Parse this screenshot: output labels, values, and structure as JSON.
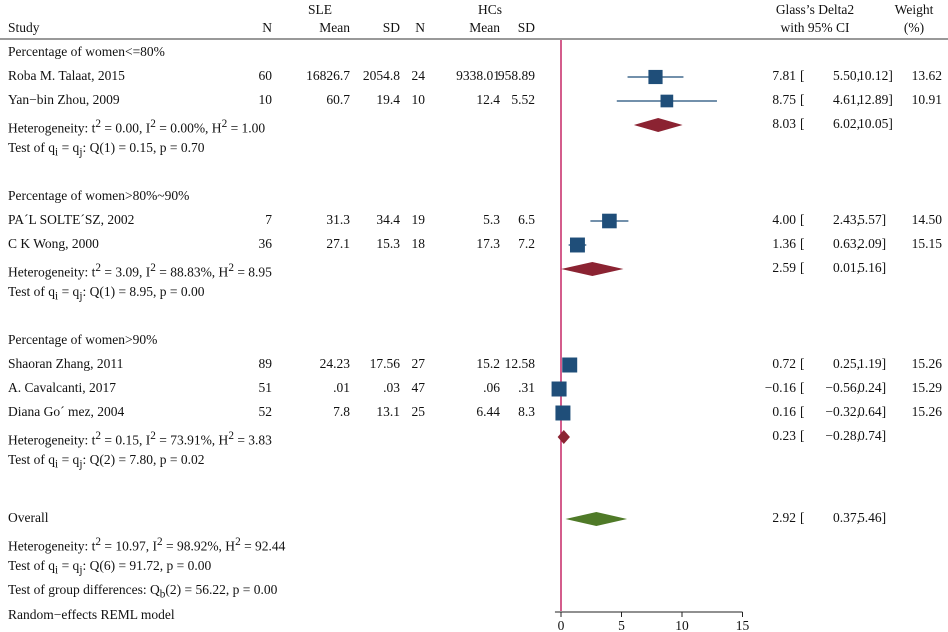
{
  "header": {
    "study": "Study",
    "sle": "SLE",
    "hcs": "HCs",
    "n1": "N",
    "mean1": "Mean",
    "sd1": "SD",
    "n2": "N",
    "mean2": "Mean",
    "sd2": "SD",
    "effect1": "Glass’s Delta2",
    "effect2": "with 95% CI",
    "weight1": "Weight",
    "weight2": "(%)"
  },
  "groups": [
    {
      "title": "Percentage of women<=80%",
      "studies": [
        {
          "name": "Roba M. Talaat, 2015",
          "n1": "60",
          "mean1": "16826.7",
          "sd1": "2054.8",
          "n2": "24",
          "mean2": "9338.01",
          "sd2": "958.89",
          "est": "7.81",
          "lo": "5.50,",
          "hi": "10.12]",
          "w": "13.62"
        },
        {
          "name": "Yan−bin Zhou, 2009",
          "n1": "10",
          "mean1": "60.7",
          "sd1": "19.4",
          "n2": "10",
          "mean2": "12.4",
          "sd2": "5.52",
          "est": "8.75",
          "lo": "4.61,",
          "hi": "12.89]",
          "w": "10.91"
        }
      ],
      "het": {
        "prefix": "Heterogeneity: t",
        "rest": " = 0.00, I",
        "rest2": " = 0.00%, H",
        "rest3": " = 1.00",
        "sup": "2"
      },
      "hetEst": {
        "est": "8.03",
        "lo": "6.02,",
        "hi": "10.05]"
      },
      "test": {
        "a": "Test of q",
        "b": " = q",
        "c": ": Q(1) = 0.15, p = 0.70",
        "si": "i",
        "sj": "j"
      }
    },
    {
      "title": "Percentage of women>80%~90%",
      "studies": [
        {
          "name": "PA´L SOLTE´SZ, 2002",
          "n1": "7",
          "mean1": "31.3",
          "sd1": "34.4",
          "n2": "19",
          "mean2": "5.3",
          "sd2": "6.5",
          "est": "4.00",
          "lo": "2.43,",
          "hi": "5.57]",
          "w": "14.50"
        },
        {
          "name": "C K Wong, 2000",
          "n1": "36",
          "mean1": "27.1",
          "sd1": "15.3",
          "n2": "18",
          "mean2": "17.3",
          "sd2": "7.2",
          "est": "1.36",
          "lo": "0.63,",
          "hi": "2.09]",
          "w": "15.15"
        }
      ],
      "het": {
        "prefix": "Heterogeneity: t",
        "rest": " = 3.09, I",
        "rest2": " = 88.83%, H",
        "rest3": " = 8.95",
        "sup": "2"
      },
      "hetEst": {
        "est": "2.59",
        "lo": "0.01,",
        "hi": "5.16]"
      },
      "test": {
        "a": "Test of q",
        "b": " = q",
        "c": ": Q(1) = 8.95, p = 0.00",
        "si": "i",
        "sj": "j"
      }
    },
    {
      "title": "Percentage of women>90%",
      "studies": [
        {
          "name": "Shaoran Zhang, 2011",
          "n1": "89",
          "mean1": "24.23",
          "sd1": "17.56",
          "n2": "27",
          "mean2": "15.2",
          "sd2": "12.58",
          "est": "0.72",
          "lo": "0.25,",
          "hi": "1.19]",
          "w": "15.26"
        },
        {
          "name": "A. Cavalcanti, 2017",
          "n1": "51",
          "mean1": ".01",
          "sd1": ".03",
          "n2": "47",
          "mean2": ".06",
          "sd2": ".31",
          "est": "−0.16",
          "lo": "−0.56,",
          "hi": "0.24]",
          "w": "15.29"
        },
        {
          "name": "Diana Go´ mez, 2004",
          "n1": "52",
          "mean1": "7.8",
          "sd1": "13.1",
          "n2": "25",
          "mean2": "6.44",
          "sd2": "8.3",
          "est": "0.16",
          "lo": "−0.32,",
          "hi": "0.64]",
          "w": "15.26"
        }
      ],
      "het": {
        "prefix": "Heterogeneity: t",
        "rest": " = 0.15, I",
        "rest2": " = 73.91%, H",
        "rest3": " = 3.83",
        "sup": "2"
      },
      "hetEst": {
        "est": "0.23",
        "lo": "−0.28,",
        "hi": "0.74]"
      },
      "test": {
        "a": "Test of q",
        "b": " = q",
        "c": ": Q(2) = 7.80, p = 0.02",
        "si": "i",
        "sj": "j"
      }
    }
  ],
  "overall": {
    "label": "Overall",
    "est": "2.92",
    "lo": "0.37,",
    "hi": "5.46]",
    "het": {
      "prefix": "Heterogeneity: t",
      "rest": " = 10.97, I",
      "rest2": " = 98.92%, H",
      "rest3": " = 92.44",
      "sup": "2"
    },
    "test": {
      "a": "Test of q",
      "b": " = q",
      "c": ": Q(6) = 91.72, p = 0.00",
      "si": "i",
      "sj": "j"
    },
    "groupTest": {
      "a": "Test of group differences: Q",
      "sub": "b",
      "c": "(2) = 56.22, p = 0.00"
    },
    "model": "Random−effects REML model"
  },
  "bracket": "[",
  "colors": {
    "square": "#1f4e79",
    "subgroupDiamond": "#8b2332",
    "overallDiamond": "#4f7a28",
    "refLine": "#c2185b"
  },
  "chart_data": {
    "type": "forest",
    "xlim": [
      -0.5,
      15
    ],
    "xticks": [
      0,
      5,
      10,
      15
    ],
    "xticklabels": [
      "0",
      "5",
      "10",
      "15"
    ],
    "reference_line": 0,
    "studies": [
      {
        "name": "Roba M. Talaat, 2015",
        "est": 7.81,
        "lo": 5.5,
        "hi": 10.12,
        "weight": 13.62
      },
      {
        "name": "Yan−bin Zhou, 2009",
        "est": 8.75,
        "lo": 4.61,
        "hi": 12.89,
        "weight": 10.91
      },
      {
        "name": "PA´L SOLTE´SZ, 2002",
        "est": 4.0,
        "lo": 2.43,
        "hi": 5.57,
        "weight": 14.5
      },
      {
        "name": "C K Wong, 2000",
        "est": 1.36,
        "lo": 0.63,
        "hi": 2.09,
        "weight": 15.15
      },
      {
        "name": "Shaoran Zhang, 2011",
        "est": 0.72,
        "lo": 0.25,
        "hi": 1.19,
        "weight": 15.26
      },
      {
        "name": "A. Cavalcanti, 2017",
        "est": -0.16,
        "lo": -0.56,
        "hi": 0.24,
        "weight": 15.29
      },
      {
        "name": "Diana Go´ mez, 2004",
        "est": 0.16,
        "lo": -0.32,
        "hi": 0.64,
        "weight": 15.26
      }
    ],
    "subgroup_pooled": [
      {
        "group": "Percentage of women<=80%",
        "est": 8.03,
        "lo": 6.02,
        "hi": 10.05
      },
      {
        "group": "Percentage of women>80%~90%",
        "est": 2.59,
        "lo": 0.01,
        "hi": 5.16
      },
      {
        "group": "Percentage of women>90%",
        "est": 0.23,
        "lo": -0.28,
        "hi": 0.74
      }
    ],
    "overall": {
      "est": 2.92,
      "lo": 0.37,
      "hi": 5.46
    }
  }
}
